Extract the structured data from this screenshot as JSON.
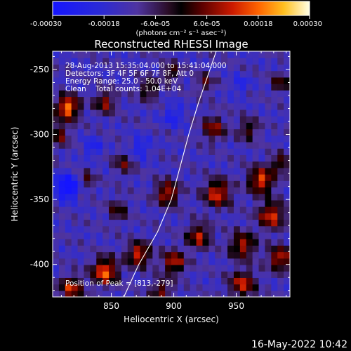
{
  "chart_data": {
    "type": "heatmap",
    "title": "Reconstructed RHESSI Image",
    "xlabel": "Heliocentric X (arcsec)",
    "ylabel": "Heliocentric Y (arcsec)",
    "xlim": [
      803,
      993
    ],
    "ylim": [
      -425,
      -236
    ],
    "x_ticks": [
      850,
      900,
      950
    ],
    "y_ticks": [
      -250,
      -300,
      -350,
      -400
    ],
    "colorbar": {
      "min": -0.0003,
      "max": 0.0003,
      "tick_values": [
        -0.0003,
        -0.00018,
        -6e-05,
        6e-05,
        0.00018,
        0.0003
      ],
      "tick_labels": [
        "-0.00030",
        "-0.00018",
        "-6.0e-05",
        "6.0e-05",
        "0.00018",
        "0.00030"
      ],
      "label": "(photons cm⁻² s⁻¹ asec⁻²)"
    },
    "annotations": [
      "28-Aug-2013 15:35:04.000 to 15:41:04.000",
      "Detectors: 3F 4F 5F 6F 7F 8F, Att 0",
      "Energy Range: 25.0 - 50.0 keV",
      "Clean    Total counts: 1.04E+04"
    ],
    "peak_text": "Position of Peak = [813,-279]",
    "limb": {
      "points": [
        [
          860,
          -425
        ],
        [
          872,
          -400
        ],
        [
          887,
          -375
        ],
        [
          898,
          -350
        ],
        [
          905,
          -325
        ],
        [
          912,
          -300
        ],
        [
          920,
          -275
        ],
        [
          929,
          -250
        ],
        [
          934,
          -236
        ]
      ]
    },
    "grid_cols": 38,
    "grid_rows": 38,
    "blobs": [
      {
        "x": 815,
        "y": -279,
        "amp": 0.00033,
        "r": 9
      },
      {
        "x": 808,
        "y": -300,
        "amp": 0.00018,
        "r": 8
      },
      {
        "x": 845,
        "y": -275,
        "amp": 0.0002,
        "r": 8
      },
      {
        "x": 880,
        "y": -265,
        "amp": 0.00016,
        "r": 8
      },
      {
        "x": 898,
        "y": -252,
        "amp": 0.00016,
        "r": 7
      },
      {
        "x": 925,
        "y": -260,
        "amp": 0.00014,
        "r": 7
      },
      {
        "x": 932,
        "y": -295,
        "amp": 0.0002,
        "r": 9
      },
      {
        "x": 960,
        "y": -296,
        "amp": 0.00016,
        "r": 8
      },
      {
        "x": 985,
        "y": -260,
        "amp": 0.00016,
        "r": 7
      },
      {
        "x": 860,
        "y": -322,
        "amp": 0.00014,
        "r": 8
      },
      {
        "x": 830,
        "y": -335,
        "amp": 0.00013,
        "r": 7
      },
      {
        "x": 855,
        "y": -358,
        "amp": 0.00014,
        "r": 8
      },
      {
        "x": 895,
        "y": -345,
        "amp": 0.00025,
        "r": 9
      },
      {
        "x": 935,
        "y": -345,
        "amp": 0.00027,
        "r": 10
      },
      {
        "x": 970,
        "y": -335,
        "amp": 0.00028,
        "r": 10
      },
      {
        "x": 978,
        "y": -362,
        "amp": 0.00026,
        "r": 10
      },
      {
        "x": 955,
        "y": -385,
        "amp": 0.00023,
        "r": 10
      },
      {
        "x": 920,
        "y": -378,
        "amp": 0.00023,
        "r": 9
      },
      {
        "x": 985,
        "y": -395,
        "amp": 0.00025,
        "r": 9
      },
      {
        "x": 955,
        "y": -415,
        "amp": 0.00024,
        "r": 10
      },
      {
        "x": 900,
        "y": -398,
        "amp": 0.00024,
        "r": 9
      },
      {
        "x": 872,
        "y": -392,
        "amp": 0.00026,
        "r": 9
      },
      {
        "x": 845,
        "y": -405,
        "amp": 0.0003,
        "r": 10
      },
      {
        "x": 818,
        "y": -418,
        "amp": 0.00024,
        "r": 9
      },
      {
        "x": 890,
        "y": -420,
        "amp": 0.00018,
        "r": 8
      },
      {
        "x": 985,
        "y": -322,
        "amp": 0.00018,
        "r": 7
      }
    ],
    "dips": [
      {
        "x": 815,
        "y": -340,
        "amp": -0.00026,
        "r": 9
      },
      {
        "x": 835,
        "y": -310,
        "amp": -0.00012,
        "r": 7
      },
      {
        "x": 873,
        "y": -310,
        "amp": -0.00012,
        "r": 8
      },
      {
        "x": 900,
        "y": -285,
        "amp": -0.00012,
        "r": 8
      },
      {
        "x": 953,
        "y": -262,
        "amp": -0.0001,
        "r": 7
      }
    ]
  },
  "footer": {
    "timestamp": "16-May-2022 10:42"
  }
}
